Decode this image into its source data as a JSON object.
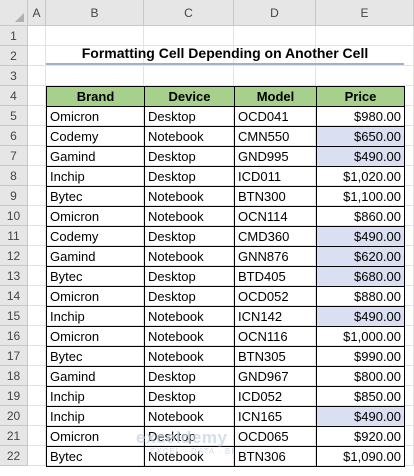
{
  "columns": [
    "A",
    "B",
    "C",
    "D",
    "E"
  ],
  "rows": [
    "1",
    "2",
    "3",
    "4",
    "5",
    "6",
    "7",
    "8",
    "9",
    "10",
    "11",
    "12",
    "13",
    "14",
    "15",
    "16",
    "17",
    "18",
    "19",
    "20",
    "21",
    "22"
  ],
  "title": "Formatting Cell Depending on Another Cell",
  "table": {
    "headers": [
      "Brand",
      "Device",
      "Model",
      "Price"
    ],
    "rows": [
      {
        "brand": "Omicron",
        "device": "Desktop",
        "model": "OCD041",
        "price": "$980.00",
        "hl": false
      },
      {
        "brand": "Codemy",
        "device": "Notebook",
        "model": "CMN550",
        "price": "$650.00",
        "hl": true
      },
      {
        "brand": "Gamind",
        "device": "Desktop",
        "model": "GND995",
        "price": "$490.00",
        "hl": true
      },
      {
        "brand": "Inchip",
        "device": "Desktop",
        "model": "ICD011",
        "price": "$1,020.00",
        "hl": false
      },
      {
        "brand": "Bytec",
        "device": "Notebook",
        "model": "BTN300",
        "price": "$1,100.00",
        "hl": false
      },
      {
        "brand": "Omicron",
        "device": "Notebook",
        "model": "OCN114",
        "price": "$860.00",
        "hl": false
      },
      {
        "brand": "Codemy",
        "device": "Desktop",
        "model": "CMD360",
        "price": "$490.00",
        "hl": true
      },
      {
        "brand": "Gamind",
        "device": "Notebook",
        "model": "GNN876",
        "price": "$620.00",
        "hl": true
      },
      {
        "brand": "Bytec",
        "device": "Desktop",
        "model": "BTD405",
        "price": "$680.00",
        "hl": true
      },
      {
        "brand": "Omicron",
        "device": "Desktop",
        "model": "OCD052",
        "price": "$880.00",
        "hl": false
      },
      {
        "brand": "Inchip",
        "device": "Notebook",
        "model": "ICN142",
        "price": "$490.00",
        "hl": true
      },
      {
        "brand": "Omicron",
        "device": "Notebook",
        "model": "OCN116",
        "price": "$1,000.00",
        "hl": false
      },
      {
        "brand": "Bytec",
        "device": "Notebook",
        "model": "BTN305",
        "price": "$990.00",
        "hl": false
      },
      {
        "brand": "Gamind",
        "device": "Desktop",
        "model": "GND967",
        "price": "$800.00",
        "hl": false
      },
      {
        "brand": "Inchip",
        "device": "Desktop",
        "model": "ICD052",
        "price": "$850.00",
        "hl": false
      },
      {
        "brand": "Inchip",
        "device": "Notebook",
        "model": "ICN165",
        "price": "$490.00",
        "hl": true
      },
      {
        "brand": "Omicron",
        "device": "Desktop",
        "model": "OCD065",
        "price": "$920.00",
        "hl": false
      },
      {
        "brand": "Bytec",
        "device": "Notebook",
        "model": "BTN306",
        "price": "$1,090.00",
        "hl": false
      }
    ]
  },
  "watermark": {
    "name": "exceldemy",
    "sub": "EXCEL · DATA · BI"
  },
  "colors": {
    "header_fill": "#a8d08d",
    "highlight_fill": "#dae0f2",
    "title_underline": "#9fb0c8"
  }
}
